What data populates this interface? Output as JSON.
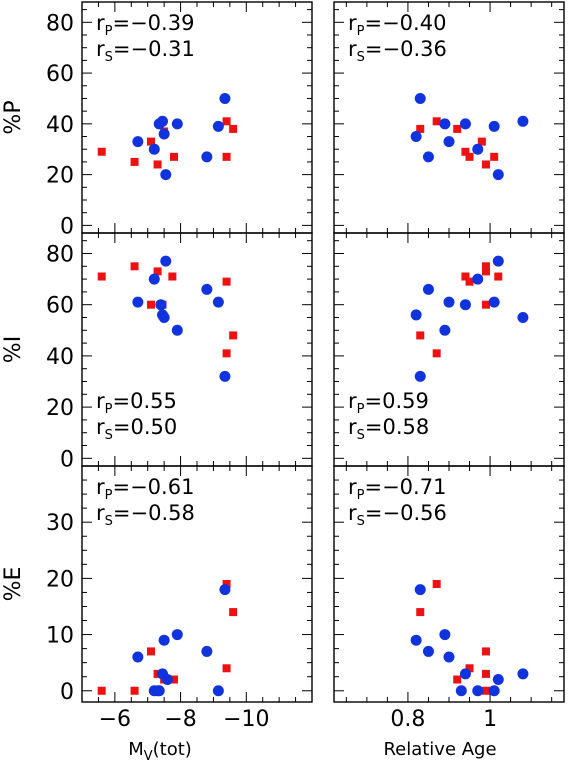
{
  "figure": {
    "x_titles": {
      "left": {
        "main": "M",
        "sub": "V",
        "rest": "(tot)"
      },
      "right": {
        "main": "Relative Age"
      }
    },
    "y_titles": [
      "%P",
      "%I",
      "%E"
    ]
  },
  "colors": {
    "red": "#ee1111",
    "blue": "#1133dd",
    "axis": "#000000"
  },
  "chart_data": [
    {
      "type": "scatter",
      "row": 0,
      "col": 0,
      "ylabel": "%P",
      "ylim": [
        -3,
        88
      ],
      "yticks": [
        0,
        20,
        40,
        60,
        80
      ],
      "xlim": [
        -5.0,
        -12.0
      ],
      "xticks": [
        -6,
        -8,
        -10
      ],
      "annotations": [
        {
          "main": "r",
          "sub": "P",
          "value": "=−0.39"
        },
        {
          "main": "r",
          "sub": "S",
          "value": "=−0.31"
        }
      ],
      "annotation_position": "top-left",
      "series": [
        {
          "marker": "square",
          "color": "red",
          "points": [
            [
              -5.6,
              29
            ],
            [
              -6.6,
              25
            ],
            [
              -7.1,
              33
            ],
            [
              -7.3,
              24
            ],
            [
              -7.5,
              37
            ],
            [
              -7.8,
              27
            ],
            [
              -9.4,
              27
            ],
            [
              -9.4,
              41
            ],
            [
              -9.6,
              38
            ]
          ]
        },
        {
          "marker": "circle",
          "color": "blue",
          "points": [
            [
              -6.7,
              33
            ],
            [
              -7.2,
              30
            ],
            [
              -7.35,
              40
            ],
            [
              -7.45,
              41
            ],
            [
              -7.5,
              36
            ],
            [
              -7.55,
              20
            ],
            [
              -7.9,
              40
            ],
            [
              -8.8,
              27
            ],
            [
              -9.15,
              39
            ],
            [
              -9.35,
              50
            ]
          ]
        }
      ]
    },
    {
      "type": "scatter",
      "row": 0,
      "col": 1,
      "ylabel": "%P",
      "ylim": [
        -3,
        88
      ],
      "yticks": [
        0,
        20,
        40,
        60,
        80
      ],
      "xlim": [
        0.62,
        1.18
      ],
      "xticks": [
        0.8,
        1
      ],
      "annotations": [
        {
          "main": "r",
          "sub": "P",
          "value": "=−0.40"
        },
        {
          "main": "r",
          "sub": "S",
          "value": "=−0.36"
        }
      ],
      "annotation_position": "top-left",
      "series": [
        {
          "marker": "square",
          "color": "red",
          "points": [
            [
              0.83,
              38
            ],
            [
              0.87,
              41
            ],
            [
              0.92,
              38
            ],
            [
              0.94,
              29
            ],
            [
              0.95,
              27
            ],
            [
              0.98,
              33
            ],
            [
              0.99,
              24
            ],
            [
              1.01,
              27
            ]
          ]
        },
        {
          "marker": "circle",
          "color": "blue",
          "points": [
            [
              0.82,
              35
            ],
            [
              0.83,
              50
            ],
            [
              0.85,
              27
            ],
            [
              0.89,
              40
            ],
            [
              0.9,
              33
            ],
            [
              0.94,
              40
            ],
            [
              0.97,
              30
            ],
            [
              1.01,
              39
            ],
            [
              1.02,
              20
            ],
            [
              1.08,
              41
            ]
          ]
        }
      ]
    },
    {
      "type": "scatter",
      "row": 1,
      "col": 0,
      "ylabel": "%I",
      "ylim": [
        -3,
        88
      ],
      "yticks": [
        0,
        20,
        40,
        60,
        80
      ],
      "xlim": [
        -5.0,
        -12.0
      ],
      "xticks": [
        -6,
        -8,
        -10
      ],
      "annotations": [
        {
          "main": "r",
          "sub": "P",
          "value": "=0.55"
        },
        {
          "main": "r",
          "sub": "S",
          "value": "=0.50"
        }
      ],
      "annotation_position": "bottom-left",
      "series": [
        {
          "marker": "square",
          "color": "red",
          "points": [
            [
              -5.6,
              71
            ],
            [
              -6.6,
              75
            ],
            [
              -7.1,
              60
            ],
            [
              -7.3,
              73
            ],
            [
              -7.45,
              60
            ],
            [
              -7.75,
              71
            ],
            [
              -9.4,
              69
            ],
            [
              -9.4,
              41
            ],
            [
              -9.6,
              48
            ]
          ]
        },
        {
          "marker": "circle",
          "color": "blue",
          "points": [
            [
              -6.7,
              61
            ],
            [
              -7.2,
              70
            ],
            [
              -7.4,
              60
            ],
            [
              -7.45,
              56
            ],
            [
              -7.5,
              55
            ],
            [
              -7.55,
              77
            ],
            [
              -7.9,
              50
            ],
            [
              -8.8,
              66
            ],
            [
              -9.15,
              61
            ],
            [
              -9.35,
              32
            ]
          ]
        }
      ]
    },
    {
      "type": "scatter",
      "row": 1,
      "col": 1,
      "ylabel": "%I",
      "ylim": [
        -3,
        88
      ],
      "yticks": [
        0,
        20,
        40,
        60,
        80
      ],
      "xlim": [
        0.62,
        1.18
      ],
      "xticks": [
        0.8,
        1
      ],
      "annotations": [
        {
          "main": "r",
          "sub": "P",
          "value": "=0.59"
        },
        {
          "main": "r",
          "sub": "S",
          "value": "=0.58"
        }
      ],
      "annotation_position": "bottom-left",
      "series": [
        {
          "marker": "square",
          "color": "red",
          "points": [
            [
              0.83,
              48
            ],
            [
              0.87,
              41
            ],
            [
              0.94,
              71
            ],
            [
              0.95,
              69
            ],
            [
              0.99,
              73
            ],
            [
              0.99,
              75
            ],
            [
              0.99,
              60
            ],
            [
              1.02,
              71
            ]
          ]
        },
        {
          "marker": "circle",
          "color": "blue",
          "points": [
            [
              0.82,
              56
            ],
            [
              0.83,
              32
            ],
            [
              0.85,
              66
            ],
            [
              0.89,
              50
            ],
            [
              0.9,
              61
            ],
            [
              0.94,
              60
            ],
            [
              0.97,
              70
            ],
            [
              1.01,
              61
            ],
            [
              1.02,
              77
            ],
            [
              1.08,
              55
            ]
          ]
        }
      ]
    },
    {
      "type": "scatter",
      "row": 2,
      "col": 0,
      "ylabel": "%E",
      "ylim": [
        -2,
        40
      ],
      "yticks": [
        0,
        10,
        20,
        30
      ],
      "xlim": [
        -5.0,
        -12.0
      ],
      "xticks": [
        -6,
        -8,
        -10
      ],
      "annotations": [
        {
          "main": "r",
          "sub": "P",
          "value": "=−0.61"
        },
        {
          "main": "r",
          "sub": "S",
          "value": "=−0.58"
        }
      ],
      "annotation_position": "top-left",
      "series": [
        {
          "marker": "square",
          "color": "red",
          "points": [
            [
              -5.6,
              0
            ],
            [
              -6.6,
              0
            ],
            [
              -7.1,
              7
            ],
            [
              -7.3,
              3
            ],
            [
              -7.5,
              2
            ],
            [
              -7.8,
              2
            ],
            [
              -9.4,
              4
            ],
            [
              -9.4,
              19
            ],
            [
              -9.6,
              14
            ]
          ]
        },
        {
          "marker": "circle",
          "color": "blue",
          "points": [
            [
              -6.7,
              6
            ],
            [
              -7.2,
              0
            ],
            [
              -7.3,
              0
            ],
            [
              -7.35,
              0
            ],
            [
              -7.45,
              3
            ],
            [
              -7.5,
              9
            ],
            [
              -7.6,
              2
            ],
            [
              -7.9,
              10
            ],
            [
              -8.8,
              7
            ],
            [
              -9.15,
              0
            ],
            [
              -9.35,
              18
            ]
          ]
        }
      ]
    },
    {
      "type": "scatter",
      "row": 2,
      "col": 1,
      "ylabel": "%E",
      "ylim": [
        -2,
        40
      ],
      "yticks": [
        0,
        10,
        20,
        30
      ],
      "xlim": [
        0.62,
        1.18
      ],
      "xticks": [
        0.8,
        1
      ],
      "annotations": [
        {
          "main": "r",
          "sub": "P",
          "value": "=−0.71"
        },
        {
          "main": "r",
          "sub": "S",
          "value": "=−0.56"
        }
      ],
      "annotation_position": "top-left",
      "series": [
        {
          "marker": "square",
          "color": "red",
          "points": [
            [
              0.83,
              14
            ],
            [
              0.87,
              19
            ],
            [
              0.92,
              2
            ],
            [
              0.95,
              4
            ],
            [
              0.99,
              7
            ],
            [
              0.99,
              3
            ],
            [
              0.99,
              0
            ]
          ]
        },
        {
          "marker": "circle",
          "color": "blue",
          "points": [
            [
              0.82,
              9
            ],
            [
              0.83,
              18
            ],
            [
              0.85,
              7
            ],
            [
              0.89,
              10
            ],
            [
              0.9,
              6
            ],
            [
              0.93,
              0
            ],
            [
              0.94,
              3
            ],
            [
              0.97,
              0
            ],
            [
              1.01,
              0
            ],
            [
              1.02,
              2
            ],
            [
              1.08,
              3
            ]
          ]
        }
      ]
    }
  ]
}
